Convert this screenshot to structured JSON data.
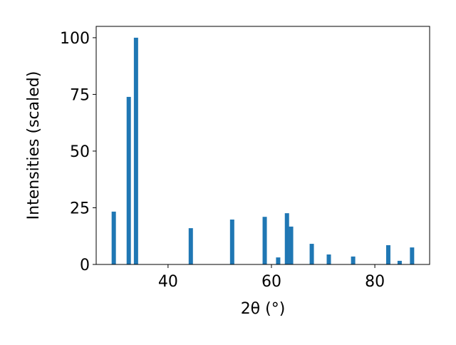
{
  "chart_data": {
    "type": "bar",
    "x_label": "2θ (°)",
    "y_label": "Intensities (scaled)",
    "x": [
      29.5,
      32.4,
      33.8,
      44.4,
      52.4,
      58.7,
      61.3,
      63.0,
      63.8,
      67.8,
      71.1,
      75.8,
      82.6,
      84.8,
      87.2
    ],
    "values": [
      23.3,
      73.9,
      100,
      16.0,
      19.8,
      21.0,
      3.1,
      22.6,
      16.7,
      9.1,
      4.4,
      3.5,
      8.5,
      1.6,
      7.5
    ],
    "color": "#1f77b4",
    "xlim": [
      26.1,
      90.6
    ],
    "xticks": [
      40,
      60,
      80
    ],
    "ylim": [
      0,
      105
    ],
    "yticks": [
      0,
      25,
      50,
      75,
      100
    ]
  }
}
